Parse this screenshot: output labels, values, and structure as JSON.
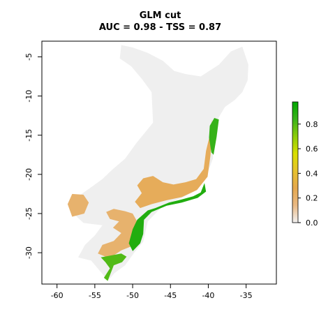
{
  "chart_data": {
    "type": "heatmap",
    "title": "GLM cut",
    "subtitle": "AUC = 0.98 - TSS = 0.87",
    "xlabel": "",
    "ylabel": "",
    "xlim": [
      -62,
      -31
    ],
    "ylim": [
      -34,
      -3
    ],
    "x_ticks": [
      -60,
      -55,
      -50,
      -45,
      -40,
      -35
    ],
    "x_tick_labels": [
      "-60",
      "-55",
      "-50",
      "-45",
      "-40",
      "-35"
    ],
    "y_ticks": [
      -5,
      -10,
      -15,
      -20,
      -25,
      -30
    ],
    "y_tick_labels": [
      "-5",
      "-10",
      "-15",
      "-20",
      "-25",
      "-30"
    ],
    "grid": false,
    "legend": {
      "placement": "right",
      "type": "colorbar",
      "range": [
        0.0,
        0.98
      ],
      "ticks": [
        0.0,
        0.2,
        0.4,
        0.6,
        0.8
      ],
      "tick_labels": [
        "0.0",
        "0.2",
        "0.4",
        "0.6",
        "0.8"
      ],
      "colors": [
        "#f2f2f2",
        "#e9b984",
        "#e5a84e",
        "#e6c22f",
        "#d9df00",
        "#8ccc0a",
        "#3ab31b",
        "#00a600"
      ]
    },
    "background_region_color": "#efefef",
    "regions": [
      {
        "name": "background",
        "value": 0.0,
        "outline": [
          [
            -51.5,
            -3.5
          ],
          [
            -50,
            -3.8
          ],
          [
            -48,
            -4.5
          ],
          [
            -46,
            -5.5
          ],
          [
            -44.5,
            -6.8
          ],
          [
            -43,
            -7.2
          ],
          [
            -41,
            -7.5
          ],
          [
            -38.6,
            -6
          ],
          [
            -37,
            -4.3
          ],
          [
            -35.5,
            -3.7
          ],
          [
            -34.7,
            -6
          ],
          [
            -34.8,
            -8
          ],
          [
            -35.5,
            -9.5
          ],
          [
            -36.5,
            -10.5
          ],
          [
            -37.8,
            -11.4
          ],
          [
            -38.6,
            -12.7
          ],
          [
            -39.2,
            -15
          ],
          [
            -39.4,
            -18
          ],
          [
            -40.3,
            -20.4
          ],
          [
            -41.5,
            -22
          ],
          [
            -43.5,
            -23
          ],
          [
            -46,
            -24
          ],
          [
            -48,
            -26
          ],
          [
            -48.6,
            -28.6
          ],
          [
            -49.8,
            -30
          ],
          [
            -51,
            -31.6
          ],
          [
            -52.4,
            -32.6
          ],
          [
            -53.3,
            -33.6
          ],
          [
            -54,
            -32.7
          ],
          [
            -55.5,
            -31
          ],
          [
            -57.2,
            -30.6
          ],
          [
            -56.3,
            -29
          ],
          [
            -55,
            -27.8
          ],
          [
            -54,
            -26.5
          ],
          [
            -56.5,
            -26.2
          ],
          [
            -58.3,
            -24.6
          ],
          [
            -57.5,
            -23
          ],
          [
            -56,
            -22
          ],
          [
            -54,
            -20.6
          ],
          [
            -52.7,
            -19.4
          ],
          [
            -51,
            -18
          ],
          [
            -49.5,
            -16
          ],
          [
            -47.3,
            -13.4
          ],
          [
            -47.5,
            -9.5
          ],
          [
            -48.8,
            -7.8
          ],
          [
            -50.2,
            -6.2
          ],
          [
            -51.7,
            -5.2
          ]
        ]
      },
      {
        "name": "low-suitability-tan",
        "value": 0.2,
        "outline": [
          [
            -58,
            -22.5
          ],
          [
            -56.5,
            -22.6
          ],
          [
            -55.8,
            -23.6
          ],
          [
            -56.4,
            -25
          ],
          [
            -58,
            -25.4
          ],
          [
            -58.6,
            -23.8
          ]
        ]
      },
      {
        "name": "low-suitability-tan",
        "value": 0.2,
        "outline": [
          [
            -53.5,
            -24.8
          ],
          [
            -52.5,
            -24.4
          ],
          [
            -51,
            -24.7
          ],
          [
            -50,
            -25
          ],
          [
            -49,
            -26.7
          ],
          [
            -49.2,
            -28
          ],
          [
            -50.2,
            -29.2
          ],
          [
            -51.5,
            -29.7
          ],
          [
            -52.6,
            -30.4
          ],
          [
            -53.6,
            -30.5
          ],
          [
            -54.6,
            -30.1
          ],
          [
            -54,
            -29
          ],
          [
            -52.5,
            -28.5
          ],
          [
            -51.5,
            -27.5
          ],
          [
            -52.6,
            -26.8
          ],
          [
            -51.8,
            -26
          ],
          [
            -53,
            -25.7
          ]
        ]
      },
      {
        "name": "low-suitability-tan",
        "value": 0.25,
        "outline": [
          [
            -48.6,
            -20.5
          ],
          [
            -47.3,
            -20.2
          ],
          [
            -46,
            -21
          ],
          [
            -44.6,
            -21.3
          ],
          [
            -43,
            -21
          ],
          [
            -41.6,
            -20.6
          ],
          [
            -40.6,
            -19.3
          ],
          [
            -40.3,
            -17
          ],
          [
            -39.8,
            -15
          ],
          [
            -39.5,
            -13
          ],
          [
            -39.7,
            -17.5
          ],
          [
            -40.1,
            -20.3
          ],
          [
            -41.5,
            -22
          ],
          [
            -43.5,
            -22.9
          ],
          [
            -45.5,
            -23.3
          ],
          [
            -47.5,
            -23.8
          ],
          [
            -49,
            -24.3
          ],
          [
            -49.7,
            -23.5
          ],
          [
            -48.8,
            -22.4
          ],
          [
            -49.4,
            -21.4
          ]
        ]
      },
      {
        "name": "high-suitability-coast-north",
        "value": 0.85,
        "outline": [
          [
            -39.2,
            -12.8
          ],
          [
            -38.6,
            -13
          ],
          [
            -38.9,
            -15.2
          ],
          [
            -39.3,
            -17.5
          ],
          [
            -39.6,
            -17.2
          ],
          [
            -39.9,
            -15.3
          ],
          [
            -39.8,
            -13.8
          ]
        ]
      },
      {
        "name": "high-suitability-coast-south",
        "value": 0.9,
        "outline": [
          [
            -47,
            -24.3
          ],
          [
            -45.2,
            -23.6
          ],
          [
            -43.5,
            -23.2
          ],
          [
            -42,
            -22.8
          ],
          [
            -41,
            -22.3
          ],
          [
            -40.5,
            -21.1
          ],
          [
            -40.3,
            -22.2
          ],
          [
            -41.4,
            -23
          ],
          [
            -43.5,
            -23.6
          ],
          [
            -45.5,
            -24
          ],
          [
            -47.5,
            -24.8
          ],
          [
            -48.5,
            -25.8
          ],
          [
            -48.6,
            -27.6
          ],
          [
            -49,
            -28.8
          ],
          [
            -50,
            -29.8
          ],
          [
            -50.5,
            -28.8
          ],
          [
            -50,
            -27
          ],
          [
            -49.4,
            -25.8
          ],
          [
            -48,
            -24.6
          ]
        ]
      },
      {
        "name": "high-suitability-coast-far-south",
        "value": 0.8,
        "outline": [
          [
            -52.6,
            -30.3
          ],
          [
            -51.5,
            -30.1
          ],
          [
            -50.8,
            -30.5
          ],
          [
            -51.4,
            -31.2
          ],
          [
            -52.5,
            -31.6
          ],
          [
            -53.3,
            -33.6
          ],
          [
            -53.8,
            -33.2
          ],
          [
            -53,
            -32
          ],
          [
            -53.6,
            -31.2
          ],
          [
            -54.2,
            -30.6
          ]
        ]
      }
    ]
  }
}
